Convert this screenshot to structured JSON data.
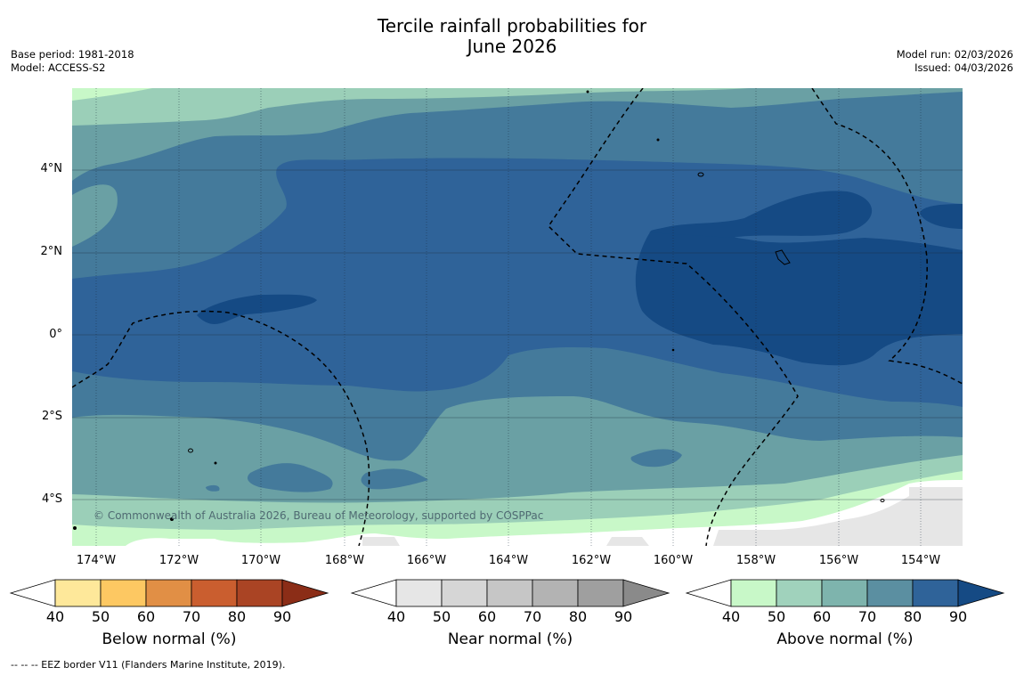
{
  "title": {
    "line1": "Tercile rainfall probabilities for",
    "line2": "June 2026"
  },
  "meta_left": {
    "base_period": "Base period: 1981-2018",
    "model": "Model: ACCESS-S2"
  },
  "meta_right": {
    "model_run": "Model run: 02/03/2026",
    "issued": "Issued: 04/03/2026"
  },
  "map": {
    "latitude_labels": [
      "4°N",
      "2°N",
      "0°",
      "2°S",
      "4°S"
    ],
    "longitude_labels": [
      "174°W",
      "172°W",
      "170°W",
      "168°W",
      "166°W",
      "164°W",
      "162°W",
      "160°W",
      "158°W",
      "156°W",
      "154°W"
    ],
    "credit": "© Commonwealth of Australia 2026, Bureau of Meteorology, supported by COSPPac"
  },
  "legends": [
    {
      "title": "Below normal (%)",
      "ticks": [
        "40",
        "50",
        "60",
        "70",
        "80",
        "90"
      ],
      "colors": [
        "#ffffff",
        "#fee89a",
        "#fdc862",
        "#e18f45",
        "#ca5e2f",
        "#aa4424",
        "#8b2d17"
      ]
    },
    {
      "title": "Near normal (%)",
      "ticks": [
        "40",
        "50",
        "60",
        "70",
        "80",
        "90"
      ],
      "colors": [
        "#ffffff",
        "#e6e6e6",
        "#d6d6d6",
        "#c6c6c6",
        "#b3b3b3",
        "#9f9f9f",
        "#8a8a8a"
      ]
    },
    {
      "title": "Above normal (%)",
      "ticks": [
        "40",
        "50",
        "60",
        "70",
        "80",
        "90"
      ],
      "colors": [
        "#ffffff",
        "#c8f8c8",
        "#a0d2bc",
        "#7eb4ad",
        "#5b8fa1",
        "#2f6399",
        "#154a84"
      ]
    }
  ],
  "footnote": "--  --  -- EEZ border V11 (Flanders Marine Institute, 2019)."
}
